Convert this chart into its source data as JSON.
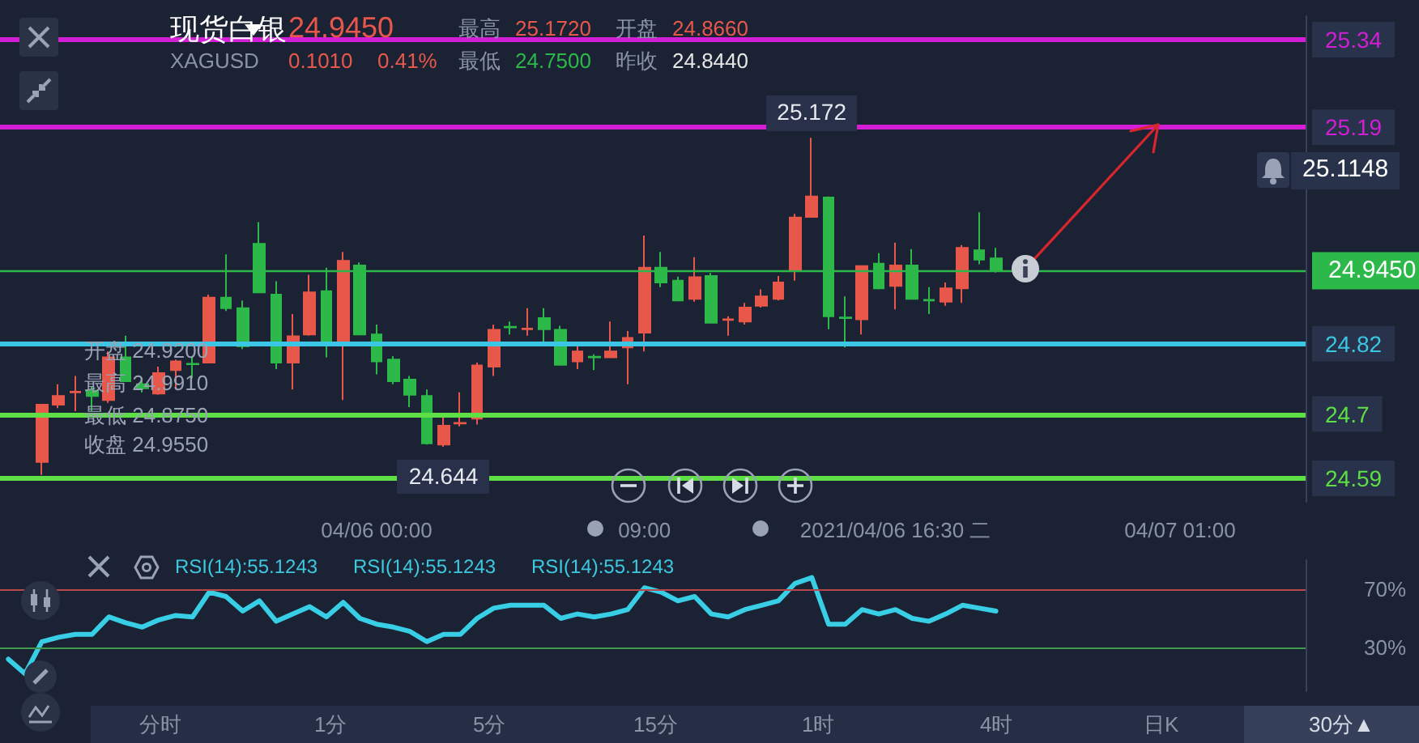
{
  "chart_data": [
    {
      "type": "candlestick",
      "title": "现货白银",
      "subtitle": "XAGUSD",
      "categories": [
        null,
        null,
        null,
        null,
        null,
        null,
        null,
        null,
        null,
        null,
        null,
        null,
        null,
        null,
        null,
        null,
        null,
        null,
        null,
        null,
        null,
        null,
        "04/06 00:00",
        null,
        null,
        null,
        null,
        null,
        null,
        null,
        null,
        null,
        null,
        null,
        null,
        null,
        null,
        null,
        "09:00",
        null,
        null,
        null,
        null,
        null,
        null,
        null,
        null,
        null,
        null,
        null,
        null,
        null,
        null,
        "2021/04/06 16:30 二",
        null,
        null,
        null,
        null,
        null,
        null,
        null,
        null,
        null,
        null,
        null,
        null,
        null,
        null,
        null,
        null,
        "04/07 01:00",
        null,
        null,
        null,
        null,
        null,
        null,
        null
      ],
      "ohlc": [
        null,
        null,
        [
          24.618,
          24.716,
          24.596,
          24.716
        ],
        [
          24.716,
          24.751,
          24.71,
          24.731
        ],
        [
          24.737,
          24.765,
          24.705,
          24.738
        ],
        [
          24.74,
          24.747,
          24.705,
          24.731
        ],
        [
          24.724,
          24.807,
          24.719,
          24.797
        ],
        [
          24.797,
          24.834,
          24.756,
          24.756
        ],
        [
          24.751,
          24.761,
          24.737,
          24.744
        ],
        [
          24.735,
          24.781,
          24.733,
          24.77
        ],
        [
          24.775,
          24.793,
          24.742,
          24.79
        ],
        [
          24.786,
          24.797,
          24.761,
          24.785
        ],
        [
          24.788,
          24.904,
          24.788,
          24.899
        ],
        [
          24.899,
          24.973,
          24.876,
          24.881
        ],
        [
          24.881,
          24.894,
          24.811,
          24.816
        ],
        [
          24.991,
          25.028,
          24.908,
          24.908
        ],
        [
          24.904,
          24.927,
          24.777,
          24.788
        ],
        [
          24.788,
          24.871,
          24.742,
          24.833
        ],
        [
          24.836,
          24.938,
          24.834,
          24.908
        ],
        [
          24.91,
          24.95,
          24.797,
          24.823
        ],
        [
          24.825,
          24.977,
          24.724,
          24.962
        ],
        [
          24.954,
          24.959,
          24.836,
          24.836
        ],
        [
          24.836,
          24.853,
          24.768,
          24.79
        ],
        [
          24.793,
          24.799,
          24.751,
          24.756
        ],
        [
          24.759,
          24.765,
          24.712,
          24.733
        ],
        [
          24.731,
          24.742,
          24.648,
          24.65
        ],
        [
          24.648,
          24.696,
          24.644,
          24.68
        ],
        [
          24.684,
          24.737,
          24.679,
          24.685
        ],
        [
          24.692,
          24.788,
          24.682,
          24.783
        ],
        [
          24.781,
          24.853,
          24.765,
          24.844
        ],
        [
          24.849,
          24.858,
          24.836,
          24.848
        ],
        [
          24.845,
          24.881,
          24.834,
          24.846
        ],
        [
          24.864,
          24.881,
          24.823,
          24.845
        ],
        [
          24.844,
          24.851,
          24.784,
          24.784
        ],
        [
          24.79,
          24.816,
          24.777,
          24.807
        ],
        [
          24.798,
          24.802,
          24.775,
          24.797
        ],
        [
          24.797,
          24.858,
          24.796,
          24.807
        ],
        [
          24.814,
          24.842,
          24.751,
          24.83
        ],
        [
          24.839,
          25.005,
          24.807,
          24.95
        ],
        [
          24.95,
          24.977,
          24.917,
          24.925
        ],
        [
          24.928,
          24.935,
          24.894,
          24.894
        ],
        [
          24.897,
          24.968,
          24.892,
          24.934
        ],
        [
          24.936,
          24.941,
          24.856,
          24.856
        ],
        [
          24.861,
          24.867,
          24.834,
          24.862
        ],
        [
          24.858,
          24.89,
          24.853,
          24.882
        ],
        [
          24.885,
          24.913,
          24.882,
          24.901
        ],
        [
          24.897,
          24.936,
          24.894,
          24.925
        ],
        [
          24.947,
          25.042,
          24.928,
          25.036
        ],
        [
          25.037,
          25.172,
          25.036,
          25.072
        ],
        [
          25.07,
          25.072,
          24.845,
          24.867
        ],
        [
          24.865,
          24.901,
          24.814,
          24.864
        ],
        [
          24.862,
          24.954,
          24.836,
          24.953
        ],
        [
          24.957,
          24.975,
          24.913,
          24.915
        ],
        [
          24.919,
          24.993,
          24.879,
          24.954
        ],
        [
          24.954,
          24.982,
          24.897,
          24.897
        ],
        [
          24.895,
          24.917,
          24.871,
          24.894
        ],
        [
          24.892,
          24.925,
          24.885,
          24.915
        ],
        [
          24.915,
          24.989,
          24.89,
          24.984
        ],
        [
          24.98,
          25.045,
          24.956,
          24.964
        ],
        [
          24.966,
          24.984,
          24.942,
          24.945
        ],
        null,
        null,
        null,
        null,
        null,
        null,
        null,
        null,
        null,
        null,
        null,
        null,
        null,
        null,
        null,
        null,
        null,
        null
      ],
      "colors": [
        null,
        null,
        "#e8584a",
        "#e8584a",
        "#e8584a",
        "#2db84a",
        "#e8584a",
        "#2db84a",
        "#2db84a",
        "#e8584a",
        "#e8584a",
        "#2db84a",
        "#e8584a",
        "#2db84a",
        "#2db84a",
        "#2db84a",
        "#2db84a",
        "#e8584a",
        "#e8584a",
        "#2db84a",
        "#e8584a",
        "#2db84a",
        "#2db84a",
        "#2db84a",
        "#2db84a",
        "#2db84a",
        "#e8584a",
        "#e8584a",
        "#e8584a",
        "#e8584a",
        "#2db84a",
        "#e8584a",
        "#2db84a",
        "#2db84a",
        "#e8584a",
        "#2db84a",
        "#e8584a",
        "#e8584a",
        "#e8584a",
        "#2db84a",
        "#2db84a",
        "#e8584a",
        "#2db84a",
        "#e8584a",
        "#e8584a",
        "#e8584a",
        "#e8584a",
        "#e8584a",
        "#e8584a",
        "#2db84a",
        "#2db84a",
        "#e8584a",
        "#2db84a",
        "#e8584a",
        "#2db84a",
        "#2db84a",
        "#e8584a",
        "#e8584a",
        "#2db84a",
        "#2db84a",
        null,
        null,
        null,
        null,
        null,
        null,
        null,
        null,
        null,
        null,
        null,
        null,
        null,
        null,
        null,
        null,
        null,
        null
      ],
      "ylim": [
        24.55,
        25.38
      ],
      "yticks": [
        24.59,
        24.7,
        24.82,
        25.19,
        25.34
      ],
      "ref_lines": [
        {
          "axis": "y",
          "value": 25.34,
          "label": null,
          "color": "#d21fd6"
        },
        {
          "axis": "y",
          "value": 25.19,
          "label": null,
          "color": "#d21fd6"
        },
        {
          "axis": "y",
          "value": 24.82,
          "label": null,
          "color": "#3cc6e6"
        },
        {
          "axis": "y",
          "value": 24.7,
          "label": null,
          "color": "#5ddf45"
        },
        {
          "axis": "y",
          "value": 24.59,
          "label": null,
          "color": "#5ddf45"
        },
        {
          "axis": "y",
          "value": 24.945,
          "label": "24.9450",
          "color": "#2db84a"
        }
      ],
      "annotations": [
        "24.9450",
        "0.1010",
        "0.41%",
        "最高",
        "25.1720",
        "开盘",
        "24.8660",
        "最低",
        "24.7500",
        "昨收",
        "24.8440",
        "开盘 24.9200",
        "最高 24.9910",
        "最低 24.8750",
        "收盘 24.9550",
        {
          "text": "25.172",
          "y": 25.172
        },
        {
          "text": "24.644",
          "y": 24.644
        },
        "25.1148"
      ],
      "grid": false
    },
    {
      "type": "line",
      "categories": [
        null,
        null,
        null,
        null,
        null,
        null,
        null,
        null,
        null,
        null,
        null,
        null,
        null,
        null,
        null,
        null,
        null,
        null,
        null,
        null,
        null,
        null,
        null,
        null,
        null,
        null,
        null,
        null,
        null,
        null,
        null,
        null,
        null,
        null,
        null,
        null,
        null,
        null,
        null,
        null,
        null,
        null,
        null,
        null,
        null,
        null,
        null,
        null,
        null,
        null,
        null,
        null,
        null,
        null,
        null,
        null,
        null,
        null,
        null,
        null,
        null,
        null,
        null,
        null,
        null,
        null,
        null,
        null,
        null,
        null,
        null,
        null,
        null,
        null,
        null,
        null,
        null,
        null
      ],
      "series": [
        {
          "color": "#38cfe6",
          "values": [
            22,
            12,
            34,
            37,
            39,
            39,
            51,
            47,
            44,
            49,
            52,
            51,
            68,
            65,
            55,
            62,
            48,
            53,
            58,
            51,
            61,
            50,
            46,
            44,
            41,
            34,
            39,
            39,
            50,
            57,
            59,
            59,
            59,
            50,
            53,
            51,
            53,
            56,
            71,
            68,
            62,
            65,
            53,
            51,
            56,
            59,
            62,
            74,
            78,
            46,
            46,
            56,
            53,
            56,
            50,
            48,
            53,
            59,
            57,
            55,
            null,
            null,
            null,
            null,
            null,
            null,
            null,
            null,
            null,
            null,
            null,
            null,
            null,
            null,
            null,
            null,
            null,
            null
          ]
        }
      ],
      "ylim": [
        0,
        90
      ],
      "yticks": [
        {
          "value": 70,
          "label": "70%"
        },
        {
          "value": 30,
          "label": "30%"
        }
      ],
      "ref_lines": [
        {
          "axis": "y",
          "value": 70,
          "color": "#b8484a"
        },
        {
          "axis": "y",
          "value": 30,
          "color": "#3f9a4c"
        }
      ],
      "annotations": [
        "RSI(14):55.1243",
        "RSI(14):55.1243",
        "RSI(14):55.1243",
        "分时",
        "1分",
        "5分",
        "15分",
        "1时",
        "4时",
        "日K",
        "30分▲"
      ],
      "tick_labels": "y",
      "grid": false,
      "marker": "none",
      "line_style": "solid"
    }
  ]
}
